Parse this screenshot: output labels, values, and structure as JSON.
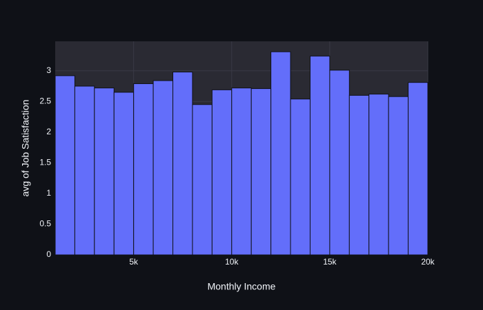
{
  "chart_data": {
    "type": "histogram",
    "x_label": "Monthly Income",
    "y_label": "avg of Job Satisfaction",
    "bins": [
      1000,
      2000,
      3000,
      4000,
      5000,
      6000,
      7000,
      8000,
      9000,
      10000,
      11000,
      12000,
      13000,
      14000,
      15000,
      16000,
      17000,
      18000,
      19000,
      20000
    ],
    "values": [
      2.92,
      2.75,
      2.72,
      2.65,
      2.79,
      2.84,
      2.98,
      2.45,
      2.69,
      2.72,
      2.71,
      3.31,
      2.54,
      3.24,
      3.01,
      2.6,
      2.62,
      2.58,
      2.81
    ],
    "color": "#636efa",
    "xlim": [
      1000,
      20000
    ],
    "ylim": [
      0,
      3.48
    ],
    "xticks": [
      {
        "value": 5000,
        "label": "5k"
      },
      {
        "value": 10000,
        "label": "10k"
      },
      {
        "value": 15000,
        "label": "15k"
      },
      {
        "value": 20000,
        "label": "20k"
      }
    ],
    "yticks": [
      0,
      0.5,
      1,
      1.5,
      2,
      2.5,
      3
    ],
    "grid": true
  }
}
